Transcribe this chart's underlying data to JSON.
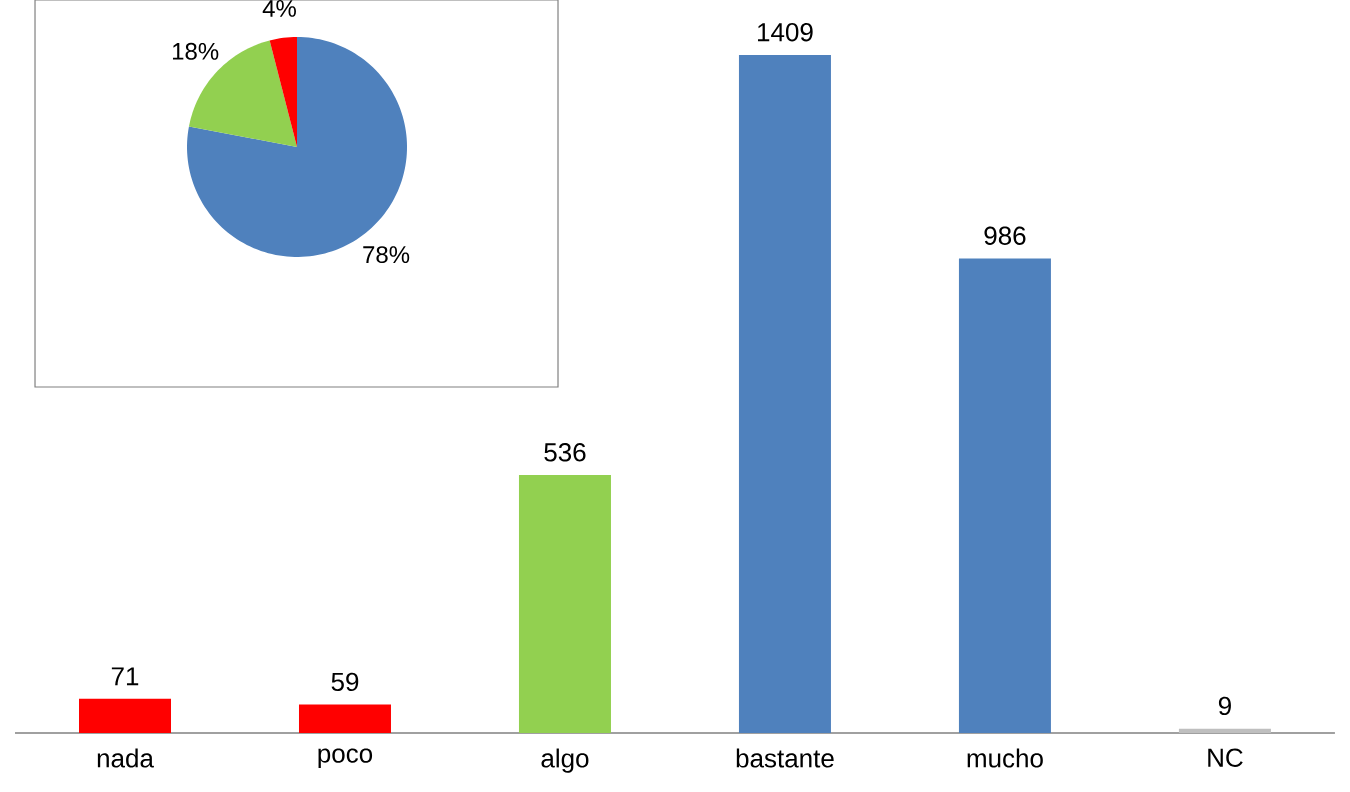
{
  "chart_data": [
    {
      "type": "pie",
      "categories": [
        null,
        null,
        null
      ],
      "values": [
        78,
        18,
        4
      ],
      "colors": [
        "#4f81bd",
        "#92d050",
        "#ff0000"
      ],
      "value_labels": [
        "78%",
        "18%",
        "4%"
      ]
    },
    {
      "type": "bar",
      "categories": [
        "nada",
        "poco",
        "algo",
        "bastante",
        "mucho",
        "NC"
      ],
      "values": [
        71,
        59,
        536,
        1409,
        986,
        9
      ],
      "colors": [
        "#ff0000",
        "#ff0000",
        "#92d050",
        "#4f81bd",
        "#4f81bd",
        "#bfbfbf"
      ],
      "data_labels": true
    }
  ]
}
